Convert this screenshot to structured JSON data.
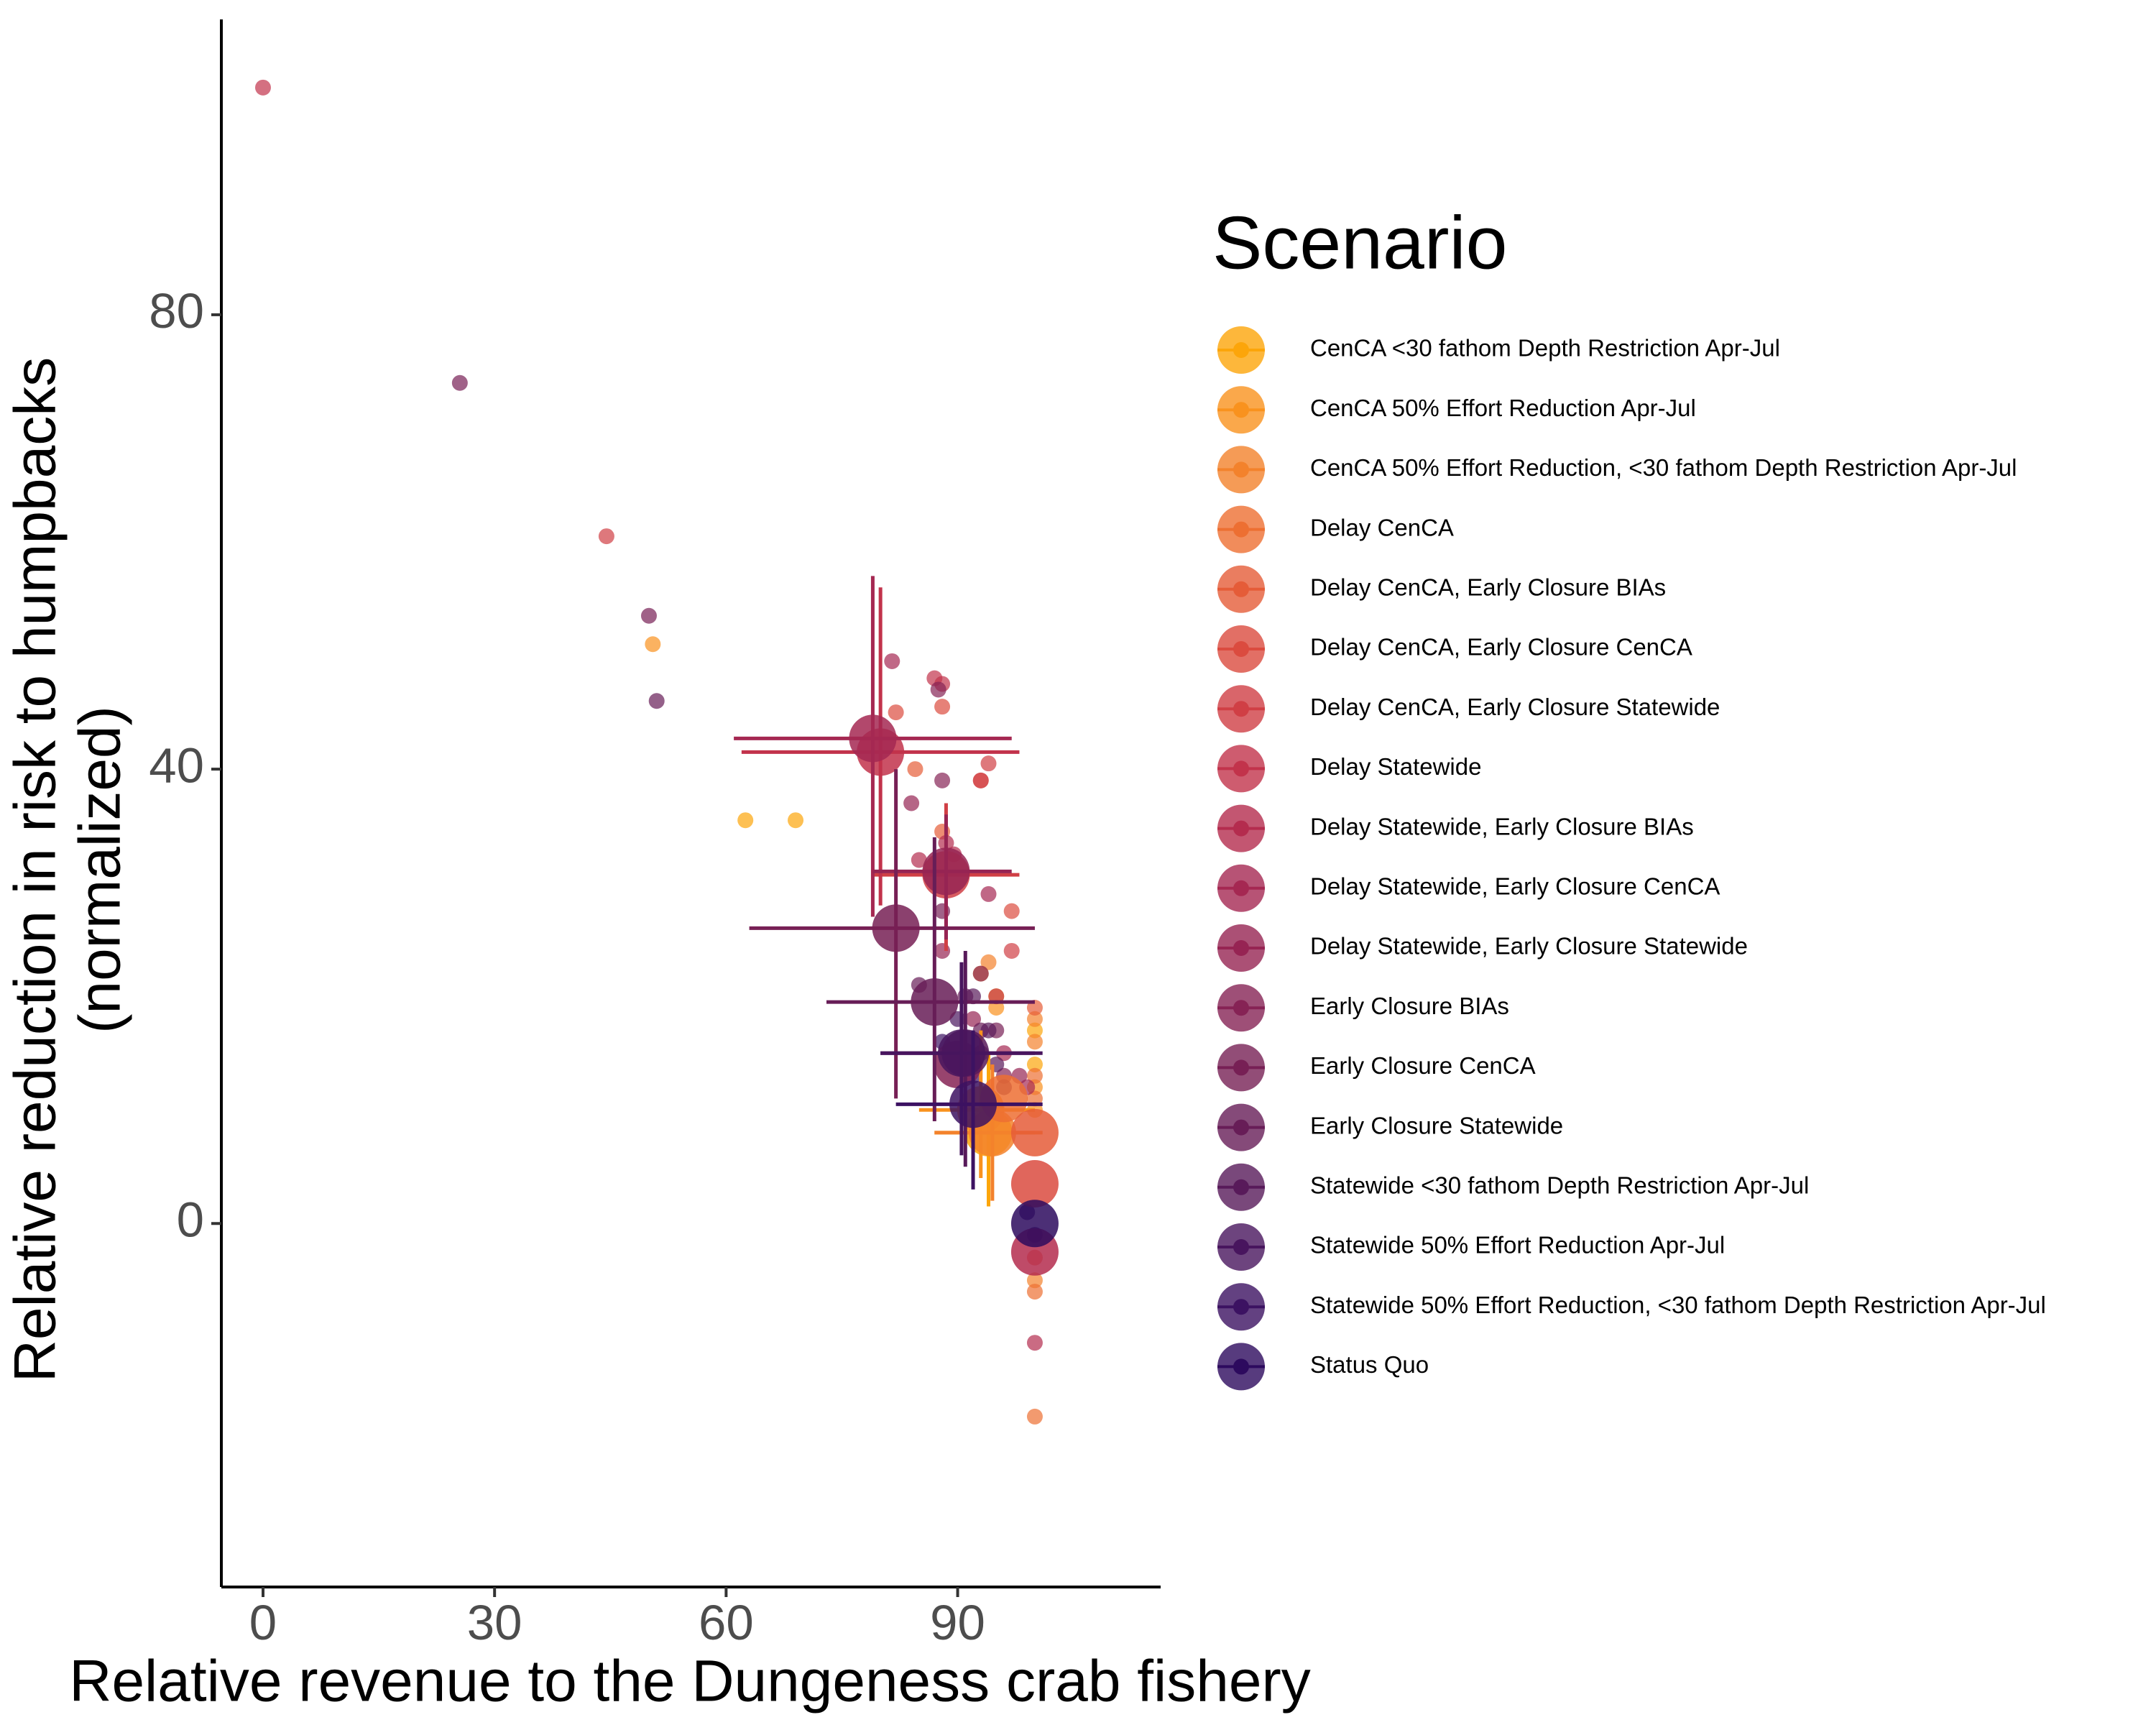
{
  "chart_data": {
    "type": "scatter",
    "xlabel": "Relative revenue to the Dungeness crab fishery",
    "ylabel": [
      "Relative reduction in risk to humpbacks",
      "(normalized)"
    ],
    "legend_title": "Scenario",
    "xlim": [
      -5.4,
      116.3
    ],
    "ylim": [
      -32,
      106
    ],
    "xticks": [
      0,
      30,
      60,
      90
    ],
    "yticks": [
      0,
      40,
      80
    ],
    "grid": false,
    "legend": "right",
    "series": [
      {
        "name": "CenCA <30 fathom Depth Restriction Apr-Jul",
        "color": "#fca50a",
        "x": [
          62.5,
          69,
          95,
          100,
          100
        ],
        "y": [
          35.5,
          35.5,
          20,
          17,
          14
        ],
        "mean": {
          "x": 94,
          "y": 8,
          "xrange": [
            87,
            100
          ],
          "yrange": [
            1.5,
            15
          ]
        }
      },
      {
        "name": "CenCA 50% Effort Reduction Apr-Jul",
        "color": "#f9921e",
        "x": [
          50.5,
          93,
          95,
          100,
          100
        ],
        "y": [
          51,
          22,
          19,
          12,
          10
        ],
        "mean": {
          "x": 93,
          "y": 10,
          "xrange": [
            85,
            100
          ],
          "yrange": [
            4,
            17
          ]
        }
      },
      {
        "name": "CenCA 50% Effort Reduction, <30 fathom Depth Restriction Apr-Jul",
        "color": "#f3822c",
        "x": [
          94,
          100,
          100,
          100
        ],
        "y": [
          23,
          18,
          16,
          -5
        ],
        "mean": {
          "x": 94.5,
          "y": 8,
          "xrange": [
            87,
            101
          ],
          "yrange": [
            2,
            14
          ]
        }
      },
      {
        "name": "Delay CenCA",
        "color": "#ed6f32",
        "x": [
          100,
          100,
          100,
          100
        ],
        "y": [
          -17,
          -6,
          13,
          11
        ],
        "mean": {
          "x": 96,
          "y": 11
        }
      },
      {
        "name": "Delay CenCA, Early Closure BIAs",
        "color": "#e55c38",
        "x": [
          84.5,
          88,
          100,
          100
        ],
        "y": [
          40,
          34.5,
          19,
          -3
        ],
        "mean": {
          "x": 100,
          "y": 8
        }
      },
      {
        "name": "Delay CenCA, Early Closure CenCA",
        "color": "#db4b3f",
        "x": [
          82,
          88,
          93,
          97
        ],
        "y": [
          45,
          45.5,
          39,
          27.5
        ],
        "mean": {
          "x": 100,
          "y": 3.5
        }
      },
      {
        "name": "Delay CenCA, Early Closure Statewide",
        "color": "#d03f45",
        "x": [
          44.5,
          93,
          94,
          97
        ],
        "y": [
          60.5,
          39,
          40.5,
          24
        ],
        "mean": {
          "x": 88.5,
          "y": 30.7,
          "xrange": [
            79,
            98
          ],
          "yrange": [
            24,
            37
          ]
        }
      },
      {
        "name": "Delay Statewide",
        "color": "#c2334b",
        "x": [
          0,
          87,
          88,
          95
        ],
        "y": [
          100,
          48,
          47.5,
          20
        ],
        "mean": {
          "x": 80,
          "y": 41.5,
          "xrange": [
            62,
            98
          ],
          "yrange": [
            28,
            56
          ]
        }
      },
      {
        "name": "Delay Statewide, Early Closure BIAs",
        "color": "#b42c4e",
        "x": [
          85,
          88.5,
          89.5,
          100
        ],
        "y": [
          32,
          33.5,
          32.5,
          -10.5
        ],
        "mean": {
          "x": 100,
          "y": -2.5
        }
      },
      {
        "name": "Delay Statewide, Early Closure CenCA",
        "color": "#a52852",
        "x": [
          81.5,
          94,
          96,
          99
        ],
        "y": [
          49.5,
          29,
          15,
          12
        ],
        "mean": {
          "x": 79,
          "y": 42.7,
          "xrange": [
            61,
            97
          ],
          "yrange": [
            27,
            57
          ]
        }
      },
      {
        "name": "Delay Statewide, Early Closure Statewide",
        "color": "#962453",
        "x": [
          84,
          88,
          92,
          98
        ],
        "y": [
          37,
          24,
          18,
          13
        ],
        "mean": {
          "x": 88.5,
          "y": 31,
          "xrange": [
            79,
            97
          ],
          "yrange": [
            25,
            36
          ]
        }
      },
      {
        "name": "Early Closure BIAs",
        "color": "#862355",
        "x": [
          87.5,
          88,
          93,
          96
        ],
        "y": [
          47,
          39,
          22,
          13
        ],
        "mean": {
          "x": 90,
          "y": 14
        }
      },
      {
        "name": "Early Closure CenCA",
        "color": "#772055",
        "x": [
          25.5,
          50,
          88,
          95
        ],
        "y": [
          74,
          53.5,
          27.5,
          17
        ],
        "mean": {
          "x": 82,
          "y": 26,
          "xrange": [
            63,
            100
          ],
          "yrange": [
            11,
            40
          ]
        }
      },
      {
        "name": "Early Closure Statewide",
        "color": "#671d57",
        "x": [
          51,
          85,
          91,
          93
        ],
        "y": [
          46,
          21,
          20,
          17
        ],
        "mean": {
          "x": 87,
          "y": 19.5,
          "xrange": [
            73,
            100
          ],
          "yrange": [
            9,
            34
          ]
        }
      },
      {
        "name": "Statewide <30 fathom Depth Restriction Apr-Jul",
        "color": "#581a5a",
        "x": [
          92,
          94,
          95
        ],
        "y": [
          20,
          17,
          14
        ],
        "mean": {
          "x": 91,
          "y": 15,
          "xrange": [
            80,
            100
          ],
          "yrange": [
            5,
            24
          ]
        }
      },
      {
        "name": "Statewide 50% Effort Reduction Apr-Jul",
        "color": "#48155e",
        "x": [
          90,
          93,
          96
        ],
        "y": [
          18,
          15,
          12
        ],
        "mean": {
          "x": 90.5,
          "y": 15,
          "xrange": [
            80,
            101
          ],
          "yrange": [
            6,
            23
          ]
        }
      },
      {
        "name": "Statewide 50% Effort Reduction, <30 fathom Depth Restriction Apr-Jul",
        "color": "#3c1262",
        "x": [
          88,
          92,
          95
        ],
        "y": [
          16,
          13,
          10
        ],
        "mean": {
          "x": 92,
          "y": 10.5,
          "xrange": [
            82,
            101
          ],
          "yrange": [
            3,
            17
          ]
        }
      },
      {
        "name": "Status Quo",
        "color": "#2d0a5e",
        "x": [
          99,
          100
        ],
        "y": [
          1,
          -1
        ],
        "mean": {
          "x": 100,
          "y": 0
        }
      }
    ]
  }
}
